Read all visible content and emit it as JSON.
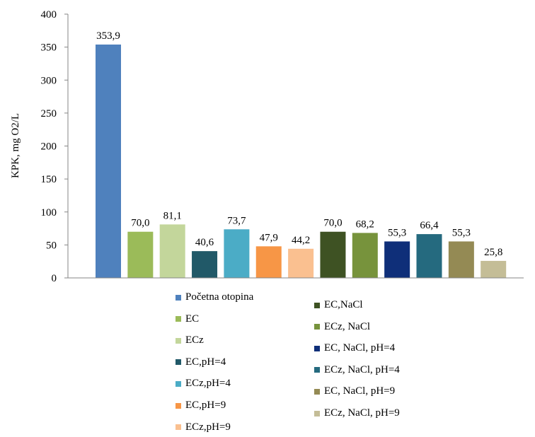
{
  "chart_data": {
    "type": "bar",
    "ylabel": "KPK, mg O2/L",
    "ylim": [
      0,
      400
    ],
    "yticks": [
      "0",
      "50",
      "100",
      "150",
      "200",
      "250",
      "300",
      "350",
      "400"
    ],
    "grid": false,
    "legend_position": "bottom",
    "categories": [
      "Početna otopina",
      "EC",
      "ECz",
      "EC,pH=4",
      "ECz,pH=4",
      "EC,pH=9",
      "ECz,pH=9",
      "EC,NaCl",
      "ECz, NaCl",
      "EC, NaCl, pH=4",
      "ECz, NaCl, pH=4",
      "EC, NaCl,  pH=9",
      "ECz, NaCl, pH=9"
    ],
    "values": [
      353.9,
      70.0,
      81.1,
      40.6,
      73.7,
      47.9,
      44.2,
      70.0,
      68.2,
      55.3,
      66.4,
      55.3,
      25.8
    ],
    "value_labels": [
      "353,9",
      "70,0",
      "81,1",
      "40,6",
      "73,7",
      "47,9",
      "44,2",
      "70,0",
      "68,2",
      "55,3",
      "66,4",
      "55,3",
      "25,8"
    ],
    "colors": [
      "#4f81bd",
      "#9bbb59",
      "#c3d69b",
      "#215968",
      "#4bacc6",
      "#f79646",
      "#fac090",
      "#3e5223",
      "#77933c",
      "#0f2f79",
      "#256a7f",
      "#948a54",
      "#c4bd97"
    ]
  }
}
